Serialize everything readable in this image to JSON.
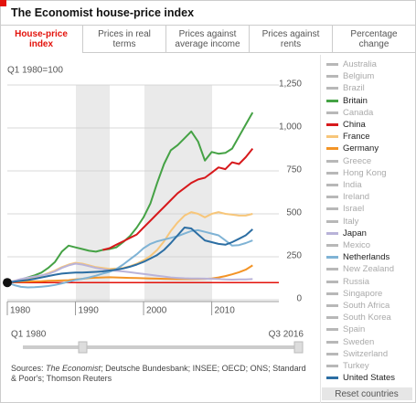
{
  "header": {
    "title": "The Economist house-price index"
  },
  "tabs": [
    "House-price index",
    "Prices in real terms",
    "Prices against average income",
    "Prices against rents",
    "Percentage change"
  ],
  "active_tab": 0,
  "chart_data": {
    "type": "line",
    "subtitle": "Q1 1980=100",
    "x": [
      1980,
      1981,
      1982,
      1983,
      1984,
      1985,
      1986,
      1987,
      1988,
      1989,
      1990,
      1991,
      1992,
      1993,
      1994,
      1995,
      1996,
      1997,
      1998,
      1999,
      2000,
      2001,
      2002,
      2003,
      2004,
      2005,
      2006,
      2007,
      2008,
      2009,
      2010,
      2011,
      2012,
      2013,
      2014,
      2015,
      2016
    ],
    "xlim": [
      1980,
      2016.5
    ],
    "xticks": [
      1980,
      1990,
      2000,
      2010
    ],
    "ylim": [
      0,
      1250
    ],
    "yticks": [
      0,
      250,
      500,
      750,
      {
        "value": 1000,
        "label": "1,000"
      },
      {
        "value": 1250,
        "label": "1,250"
      }
    ],
    "grid": true,
    "reference_line": {
      "value": 100,
      "color": "#e3120b"
    },
    "series": [
      {
        "name": "Britain",
        "color": "#45a245",
        "values": [
          100,
          108,
          118,
          130,
          142,
          158,
          185,
          220,
          280,
          315,
          305,
          295,
          285,
          280,
          290,
          295,
          305,
          335,
          370,
          420,
          480,
          560,
          680,
          790,
          870,
          900,
          940,
          980,
          920,
          810,
          860,
          850,
          855,
          880,
          950,
          1020,
          1090
        ]
      },
      {
        "name": "China",
        "color": "#d7191c",
        "values": [
          null,
          null,
          null,
          null,
          null,
          null,
          null,
          null,
          null,
          null,
          null,
          null,
          null,
          null,
          290,
          300,
          320,
          340,
          360,
          380,
          420,
          460,
          500,
          540,
          580,
          620,
          650,
          680,
          700,
          710,
          740,
          770,
          760,
          800,
          790,
          830,
          880
        ]
      },
      {
        "name": "France",
        "color": "#f7c67a",
        "values": [
          100,
          110,
          118,
          125,
          130,
          140,
          155,
          170,
          190,
          205,
          215,
          210,
          200,
          190,
          185,
          180,
          182,
          185,
          195,
          210,
          230,
          255,
          290,
          340,
          400,
          450,
          490,
          510,
          500,
          480,
          500,
          510,
          500,
          495,
          490,
          490,
          500
        ]
      },
      {
        "name": "Germany",
        "color": "#f39426",
        "values": [
          100,
          103,
          105,
          106,
          107,
          108,
          110,
          111,
          112,
          114,
          118,
          122,
          126,
          128,
          130,
          131,
          130,
          128,
          127,
          126,
          125,
          124,
          123,
          122,
          121,
          120,
          120,
          120,
          121,
          122,
          124,
          130,
          138,
          148,
          160,
          175,
          200
        ]
      },
      {
        "name": "Japan",
        "color": "#b9b3d9",
        "values": [
          100,
          110,
          120,
          128,
          135,
          142,
          150,
          165,
          185,
          200,
          210,
          205,
          195,
          185,
          178,
          172,
          168,
          165,
          160,
          155,
          150,
          145,
          140,
          135,
          130,
          127,
          125,
          124,
          124,
          123,
          122,
          120,
          118,
          117,
          118,
          118,
          120
        ]
      },
      {
        "name": "Netherlands",
        "color": "#7fb3d5",
        "values": [
          100,
          85,
          75,
          72,
          73,
          76,
          80,
          86,
          95,
          105,
          115,
          122,
          130,
          140,
          152,
          162,
          178,
          205,
          235,
          265,
          300,
          325,
          340,
          350,
          360,
          370,
          385,
          400,
          405,
          395,
          385,
          375,
          345,
          315,
          318,
          330,
          345
        ]
      },
      {
        "name": "United States",
        "color": "#2c6ea3",
        "values": [
          100,
          105,
          110,
          115,
          122,
          130,
          138,
          146,
          152,
          156,
          158,
          158,
          160,
          162,
          165,
          170,
          175,
          182,
          192,
          205,
          220,
          240,
          260,
          290,
          330,
          375,
          420,
          415,
          380,
          345,
          335,
          325,
          320,
          335,
          355,
          375,
          410
        ]
      }
    ],
    "countries": [
      "Australia",
      "Belgium",
      "Brazil",
      "Britain",
      "Canada",
      "China",
      "France",
      "Germany",
      "Greece",
      "Hong Kong",
      "India",
      "Ireland",
      "Israel",
      "Italy",
      "Japan",
      "Mexico",
      "Netherlands",
      "New Zealand",
      "Russia",
      "Singapore",
      "South Africa",
      "South Korea",
      "Spain",
      "Sweden",
      "Switzerland",
      "Turkey",
      "United States"
    ],
    "inactive_color": "#b8b8b8"
  },
  "slider": {
    "start": "Q1 1980",
    "end": "Q3 2016"
  },
  "reset_button": "Reset countries",
  "sources": [
    "Sources: ",
    "The Economist",
    "; Deutsche Bundesbank; INSEE; OECD; ONS; Standard & Poor's; Thomson Reuters"
  ]
}
